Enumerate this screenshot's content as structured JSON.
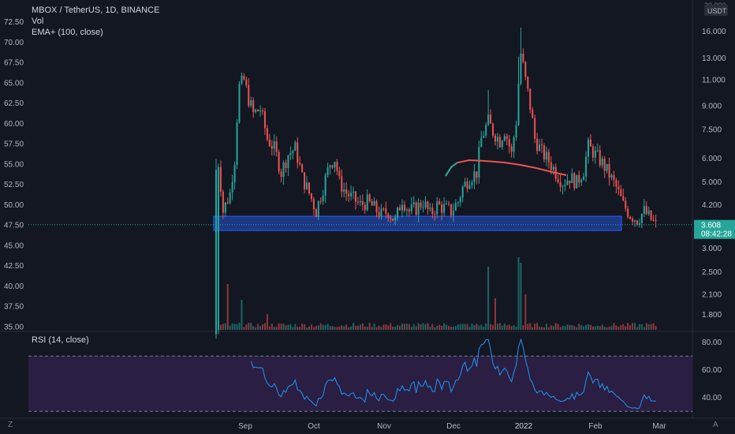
{
  "legend": {
    "symbol": "MBOX / TetherUS, 1D, BINANCE",
    "volume": "Vol",
    "ema": "EMA+ (100, close)",
    "rsi": "RSI (14, close)"
  },
  "corner_labels": {
    "bottom_left": "Z",
    "bottom_right": "A",
    "top_right_unit_top": "20.000",
    "top_right_unit": "USDT"
  },
  "colors": {
    "background": "#131722",
    "up": "#26a69a",
    "down": "#ef5350",
    "ema": "#ef5350",
    "ema_start": "#26a69a",
    "support_zone": "#2962ff",
    "rsi_band": "#2a1e43",
    "rsi_line": "#2196f3",
    "last_price_tag": "#26a69a"
  },
  "chart_data": {
    "type": "candlestick",
    "symbol": "MBOX / TetherUS",
    "interval": "1D",
    "exchange": "BINANCE",
    "x_ticks": [
      "Sep",
      "Oct",
      "Nov",
      "Dec",
      "2022",
      "Feb",
      "Mar"
    ],
    "left_axis_ticks": [
      "72.50",
      "70.00",
      "67.50",
      "65.00",
      "62.50",
      "60.00",
      "57.50",
      "55.00",
      "52.50",
      "50.00",
      "47.50",
      "45.00",
      "42.50",
      "40.00",
      "37.50",
      "35.00"
    ],
    "right_axis_ticks": [
      "16.000",
      "13.000",
      "11.000",
      "9.000",
      "7.500",
      "6.000",
      "5.000",
      "4.200",
      "3.000",
      "2.500",
      "2.100",
      "1.800"
    ],
    "right_axis_log_scale": true,
    "last_price": "3.608",
    "countdown": "08:42:28",
    "support_zone_price_range": [
      3.45,
      3.85
    ],
    "ohlc_series_approx": [
      {
        "period": "late Aug",
        "low": 1.5,
        "high": 6.0
      },
      {
        "period": "early Sep",
        "low": 3.7,
        "high": 11.5
      },
      {
        "period": "Sep peak",
        "value": 11.2
      },
      {
        "period": "late Sep",
        "value": 6.0
      },
      {
        "period": "Oct",
        "value": 5.5
      },
      {
        "period": "late Oct",
        "value": 4.2
      },
      {
        "period": "Nov",
        "value": 4.0
      },
      {
        "period": "late Nov",
        "value": 6.5
      },
      {
        "period": "Dec peak",
        "value": 16.5
      },
      {
        "period": "mid Dec",
        "value": 6.0
      },
      {
        "period": "late Dec",
        "value": 5.0
      },
      {
        "period": "early Jan",
        "value": 6.6
      },
      {
        "period": "mid Jan",
        "value": 4.0
      },
      {
        "period": "late Jan",
        "value": 3.608
      }
    ],
    "rsi": {
      "label": "RSI (14, close)",
      "ticks": [
        "80.00",
        "60.00",
        "40.00"
      ],
      "upper_band": 70,
      "lower_band": 30
    }
  }
}
